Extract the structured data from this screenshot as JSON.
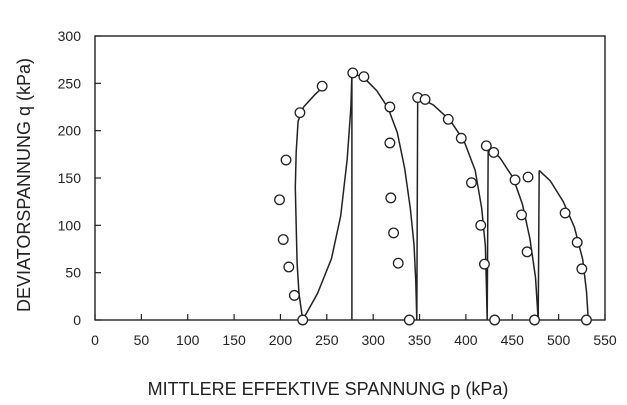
{
  "chart_data": {
    "type": "scatter",
    "xlabel": "MITTLERE EFFEKTIVE SPANNUNG   p (kPa)",
    "ylabel": "DEVIATORSPANNUNG   q (kPa)",
    "xlim": [
      0,
      550
    ],
    "ylim": [
      0,
      300
    ],
    "xticks": [
      "0",
      "50",
      "100",
      "150",
      "200",
      "250",
      "300",
      "350",
      "400",
      "450",
      "500",
      "550"
    ],
    "yticks": [
      "0",
      "50",
      "100",
      "150",
      "200",
      "250",
      "300"
    ],
    "grid": false,
    "legend": "none",
    "points": [
      {
        "x": 199,
        "y": 127
      },
      {
        "x": 203,
        "y": 85
      },
      {
        "x": 206,
        "y": 169
      },
      {
        "x": 209,
        "y": 56
      },
      {
        "x": 215,
        "y": 26
      },
      {
        "x": 221,
        "y": 219
      },
      {
        "x": 224,
        "y": 0
      },
      {
        "x": 245,
        "y": 247
      },
      {
        "x": 278,
        "y": 261
      },
      {
        "x": 290,
        "y": 257
      },
      {
        "x": 318,
        "y": 225
      },
      {
        "x": 318,
        "y": 187
      },
      {
        "x": 319,
        "y": 129
      },
      {
        "x": 322,
        "y": 92
      },
      {
        "x": 327,
        "y": 60
      },
      {
        "x": 339,
        "y": 0
      },
      {
        "x": 348,
        "y": 235
      },
      {
        "x": 356,
        "y": 233
      },
      {
        "x": 381,
        "y": 212
      },
      {
        "x": 395,
        "y": 192
      },
      {
        "x": 406,
        "y": 145
      },
      {
        "x": 416,
        "y": 100
      },
      {
        "x": 420,
        "y": 59
      },
      {
        "x": 422,
        "y": 184
      },
      {
        "x": 430,
        "y": 177
      },
      {
        "x": 431,
        "y": 0
      },
      {
        "x": 453,
        "y": 148
      },
      {
        "x": 460,
        "y": 111
      },
      {
        "x": 466,
        "y": 72
      },
      {
        "x": 467,
        "y": 151
      },
      {
        "x": 474,
        "y": 0
      },
      {
        "x": 507,
        "y": 113
      },
      {
        "x": 520,
        "y": 82
      },
      {
        "x": 525,
        "y": 54
      },
      {
        "x": 530,
        "y": 0
      }
    ],
    "curves": [
      [
        [
          224,
          0
        ],
        [
          220,
          28
        ],
        [
          218,
          60
        ],
        [
          217,
          100
        ],
        [
          216,
          140
        ],
        [
          217,
          178
        ],
        [
          219,
          210
        ],
        [
          225,
          225
        ],
        [
          237,
          238
        ],
        [
          247,
          247
        ]
      ],
      [
        [
          224,
          0
        ],
        [
          240,
          28
        ],
        [
          255,
          65
        ],
        [
          265,
          110
        ],
        [
          272,
          170
        ],
        [
          276,
          225
        ],
        [
          277,
          261
        ],
        [
          277,
          0
        ]
      ],
      [
        [
          277,
          261
        ],
        [
          290,
          256
        ],
        [
          304,
          242
        ],
        [
          316,
          224
        ],
        [
          326,
          198
        ],
        [
          334,
          160
        ],
        [
          340,
          118
        ],
        [
          344,
          80
        ],
        [
          346,
          40
        ],
        [
          347,
          0
        ],
        [
          348,
          236
        ]
      ],
      [
        [
          348,
          236
        ],
        [
          365,
          227
        ],
        [
          383,
          211
        ],
        [
          398,
          189
        ],
        [
          410,
          158
        ],
        [
          417,
          118
        ],
        [
          421,
          78
        ],
        [
          422,
          40
        ],
        [
          423,
          0
        ],
        [
          424,
          184
        ]
      ],
      [
        [
          424,
          184
        ],
        [
          437,
          171
        ],
        [
          451,
          150
        ],
        [
          461,
          122
        ],
        [
          469,
          86
        ],
        [
          475,
          45
        ],
        [
          478,
          0
        ],
        [
          479,
          158
        ]
      ],
      [
        [
          479,
          158
        ],
        [
          491,
          147
        ],
        [
          505,
          125
        ],
        [
          517,
          98
        ],
        [
          526,
          64
        ],
        [
          530,
          30
        ],
        [
          532,
          0
        ]
      ]
    ]
  }
}
